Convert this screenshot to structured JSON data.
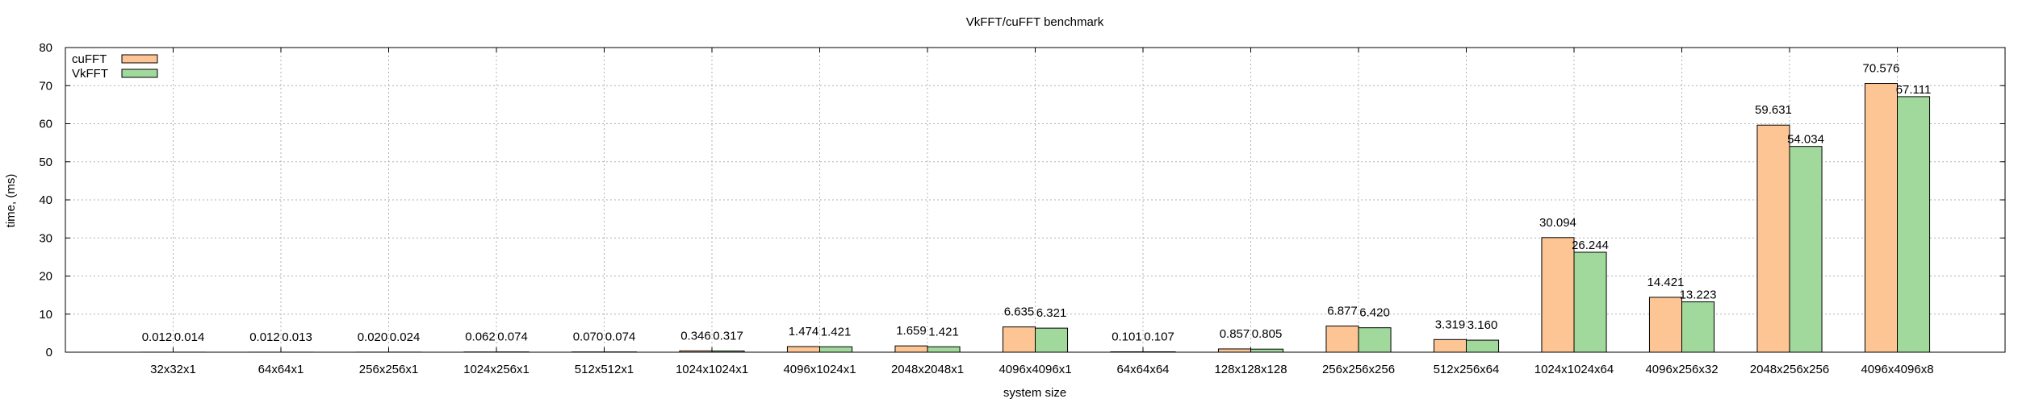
{
  "chart_data": {
    "type": "bar",
    "title": "VkFFT/cuFFT benchmark",
    "xlabel": "system size",
    "ylabel": "time, (ms)",
    "ylim": [
      0,
      80
    ],
    "yticks": [
      0,
      10,
      20,
      30,
      40,
      50,
      60,
      70,
      80
    ],
    "grid": true,
    "legend_position": "top-left",
    "categories": [
      "32x32x1",
      "64x64x1",
      "256x256x1",
      "1024x256x1",
      "512x512x1",
      "1024x1024x1",
      "4096x1024x1",
      "2048x2048x1",
      "4096x4096x1",
      "64x64x64",
      "128x128x128",
      "256x256x256",
      "512x256x64",
      "1024x1024x64",
      "4096x256x32",
      "2048x256x256",
      "4096x4096x8"
    ],
    "series": [
      {
        "name": "cuFFT",
        "color": "#fdc594",
        "values": [
          0.012,
          0.012,
          0.02,
          0.062,
          0.07,
          0.346,
          1.474,
          1.659,
          6.635,
          0.101,
          0.857,
          6.877,
          3.319,
          30.094,
          14.421,
          59.631,
          70.576
        ],
        "labels": [
          "0.012",
          "0.012",
          "0.020",
          "0.062",
          "0.070",
          "0.346",
          "1.474",
          "1.659",
          "6.635",
          "0.101",
          "0.857",
          "6.877",
          "3.319",
          "30.094",
          "14.421",
          "59.631",
          "70.576"
        ]
      },
      {
        "name": "VkFFT",
        "color": "#a0d99b",
        "values": [
          0.014,
          0.013,
          0.024,
          0.074,
          0.074,
          0.317,
          1.421,
          1.421,
          6.321,
          0.107,
          0.805,
          6.42,
          3.16,
          26.244,
          13.223,
          54.034,
          67.111
        ],
        "labels": [
          "0.014",
          "0.013",
          "0.024",
          "0.074",
          "0.074",
          "0.317",
          "1.421",
          "1.421",
          "6.321",
          "0.107",
          "0.805",
          "6.420",
          "3.160",
          "26.244",
          "13.223",
          "54.034",
          "67.111"
        ]
      }
    ]
  }
}
